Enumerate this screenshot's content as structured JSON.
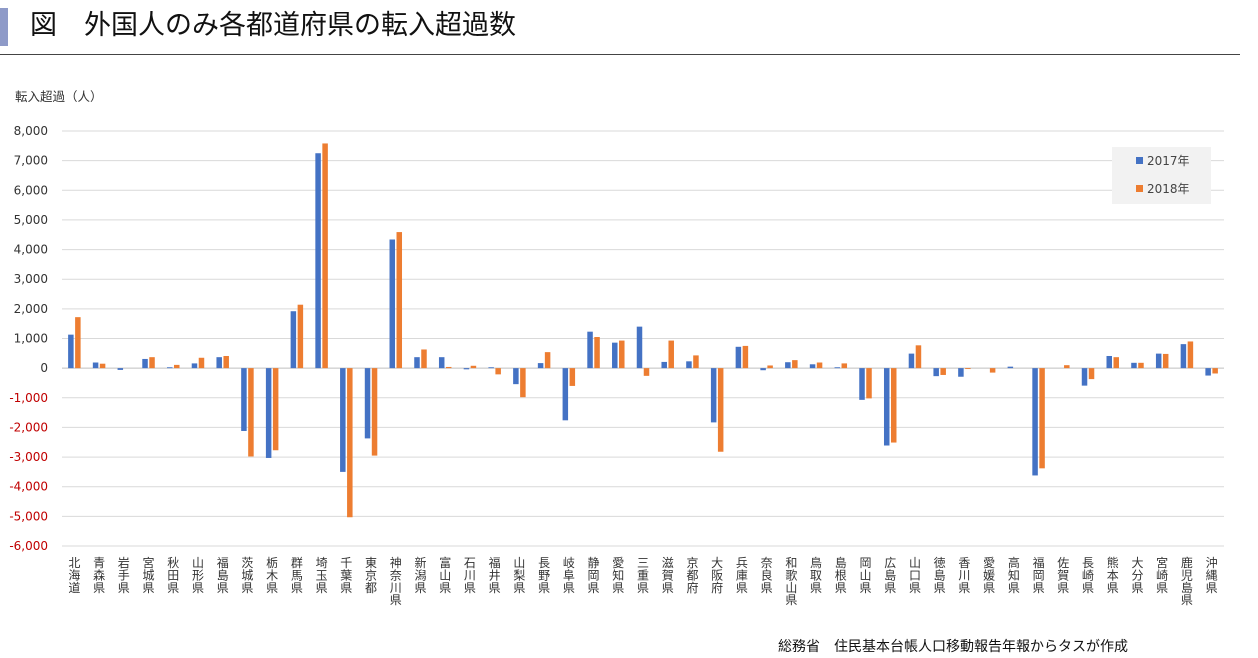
{
  "page_title": "図　外国人のみ各都道府県の転入超過数",
  "source": "総務省　住民基本台帳人口移動報告年報からタスが作成",
  "colors": {
    "series_2017": "#4472c4",
    "series_2018": "#ed7d31",
    "negative_tick": "#c00000",
    "grid": "#d9d9d9",
    "title_accent": "#8e9ac8"
  },
  "chart_data": {
    "type": "bar",
    "ylabel": "転入超過（人）",
    "ylim": [
      -6000,
      8000
    ],
    "yticks": [
      8000,
      7000,
      6000,
      5000,
      4000,
      3000,
      2000,
      1000,
      0,
      -1000,
      -2000,
      -3000,
      -4000,
      -5000,
      -6000
    ],
    "ytick_labels": [
      "8,000",
      "7,000",
      "6,000",
      "5,000",
      "4,000",
      "3,000",
      "2,000",
      "1,000",
      "0",
      "-1,000",
      "-2,000",
      "-3,000",
      "-4,000",
      "-5,000",
      "-6,000"
    ],
    "grid": true,
    "legend_position": "top-right",
    "categories": [
      "北海道",
      "青森県",
      "岩手県",
      "宮城県",
      "秋田県",
      "山形県",
      "福島県",
      "茨城県",
      "栃木県",
      "群馬県",
      "埼玉県",
      "千葉県",
      "東京都",
      "神奈川県",
      "新潟県",
      "富山県",
      "石川県",
      "福井県",
      "山梨県",
      "長野県",
      "岐阜県",
      "静岡県",
      "愛知県",
      "三重県",
      "滋賀県",
      "京都府",
      "大阪府",
      "兵庫県",
      "奈良県",
      "和歌山県",
      "鳥取県",
      "島根県",
      "岡山県",
      "広島県",
      "山口県",
      "徳島県",
      "香川県",
      "愛媛県",
      "高知県",
      "福岡県",
      "佐賀県",
      "長崎県",
      "熊本県",
      "大分県",
      "宮崎県",
      "鹿児島県",
      "沖縄県"
    ],
    "series": [
      {
        "name": "2017年",
        "values": [
          1130,
          190,
          -60,
          310,
          30,
          160,
          370,
          -2120,
          -3030,
          1920,
          7250,
          -3500,
          -2370,
          4340,
          370,
          370,
          -40,
          30,
          -540,
          170,
          -1760,
          1230,
          860,
          1400,
          210,
          230,
          -1830,
          720,
          -70,
          200,
          130,
          30,
          -1070,
          -2610,
          490,
          -270,
          -290,
          0,
          50,
          -3620,
          0,
          -590,
          410,
          180,
          490,
          810,
          -250
        ]
      },
      {
        "name": "2018年",
        "values": [
          1720,
          150,
          0,
          370,
          110,
          350,
          410,
          -2980,
          -2770,
          2140,
          7580,
          -5030,
          -2950,
          4590,
          630,
          40,
          80,
          -210,
          -980,
          540,
          -600,
          1050,
          930,
          -260,
          930,
          430,
          -2820,
          750,
          90,
          270,
          190,
          160,
          -1020,
          -2510,
          770,
          -230,
          -30,
          -150,
          0,
          -3380,
          100,
          -370,
          370,
          180,
          480,
          900,
          -180
        ]
      }
    ]
  }
}
